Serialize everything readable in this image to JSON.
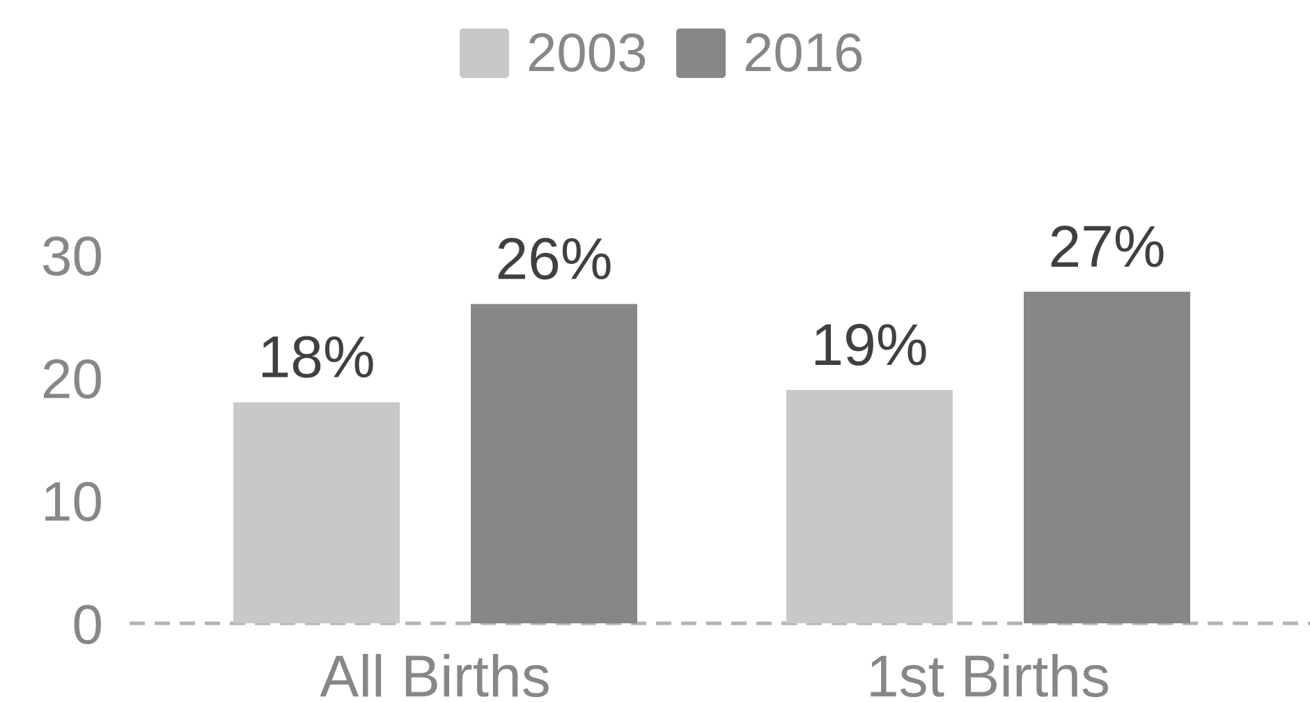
{
  "chart_data": {
    "type": "bar",
    "categories": [
      "All Births",
      "1st Births"
    ],
    "series": [
      {
        "name": "2003",
        "color": "#c8c8c8",
        "values": [
          18,
          19
        ],
        "value_labels": [
          "18%",
          "19%"
        ]
      },
      {
        "name": "2016",
        "color": "#878787",
        "values": [
          26,
          27
        ],
        "value_labels": [
          "26%",
          "27%"
        ]
      }
    ],
    "ylim": [
      0,
      30
    ],
    "yticks": [
      0,
      10,
      20,
      30
    ],
    "legend": "top"
  }
}
